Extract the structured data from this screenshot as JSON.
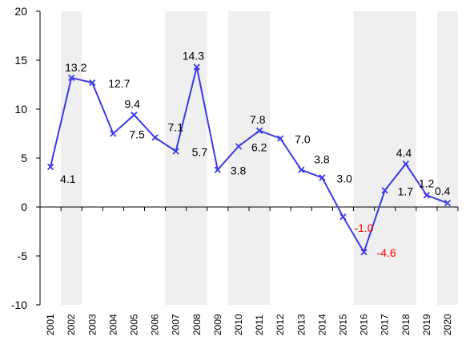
{
  "chart_data": {
    "type": "line",
    "title": "",
    "xlabel": "",
    "ylabel": "",
    "ylim": [
      -10,
      20
    ],
    "yticks": [
      -10,
      -5,
      0,
      5,
      10,
      15,
      20
    ],
    "x": [
      "2001",
      "2002",
      "2003",
      "2004",
      "2005",
      "2006",
      "2007",
      "2008",
      "2009",
      "2010",
      "2011",
      "2012",
      "2013",
      "2014",
      "2015",
      "2016",
      "2017",
      "2018",
      "2019",
      "2020"
    ],
    "series": [
      {
        "values": [
          4.1,
          13.2,
          12.7,
          7.5,
          9.4,
          7.1,
          5.7,
          14.3,
          3.8,
          6.2,
          7.8,
          7.0,
          3.8,
          3.0,
          -1.0,
          -4.6,
          1.7,
          4.4,
          1.2,
          0.4
        ],
        "labels": [
          "4.1",
          "13.2",
          "12.7",
          "7.5",
          "9.4",
          "7.1",
          "5.7",
          "14.3",
          "3.8",
          "6.2",
          "7.8",
          "7.0",
          "3.8",
          "3.0",
          "-1.0",
          "-4.6",
          "1.7",
          "4.4",
          "1.2",
          "0.4"
        ],
        "color": "#3a3ae6",
        "marker": "x"
      }
    ],
    "shaded_years": [
      "2002",
      "2007",
      "2008",
      "2010",
      "2011",
      "2016",
      "2017",
      "2018",
      "2020"
    ],
    "shade_color": "#efefef",
    "negative_label_color": "#ff0000",
    "label_color": "#000000",
    "grid": false,
    "legend": "none"
  }
}
